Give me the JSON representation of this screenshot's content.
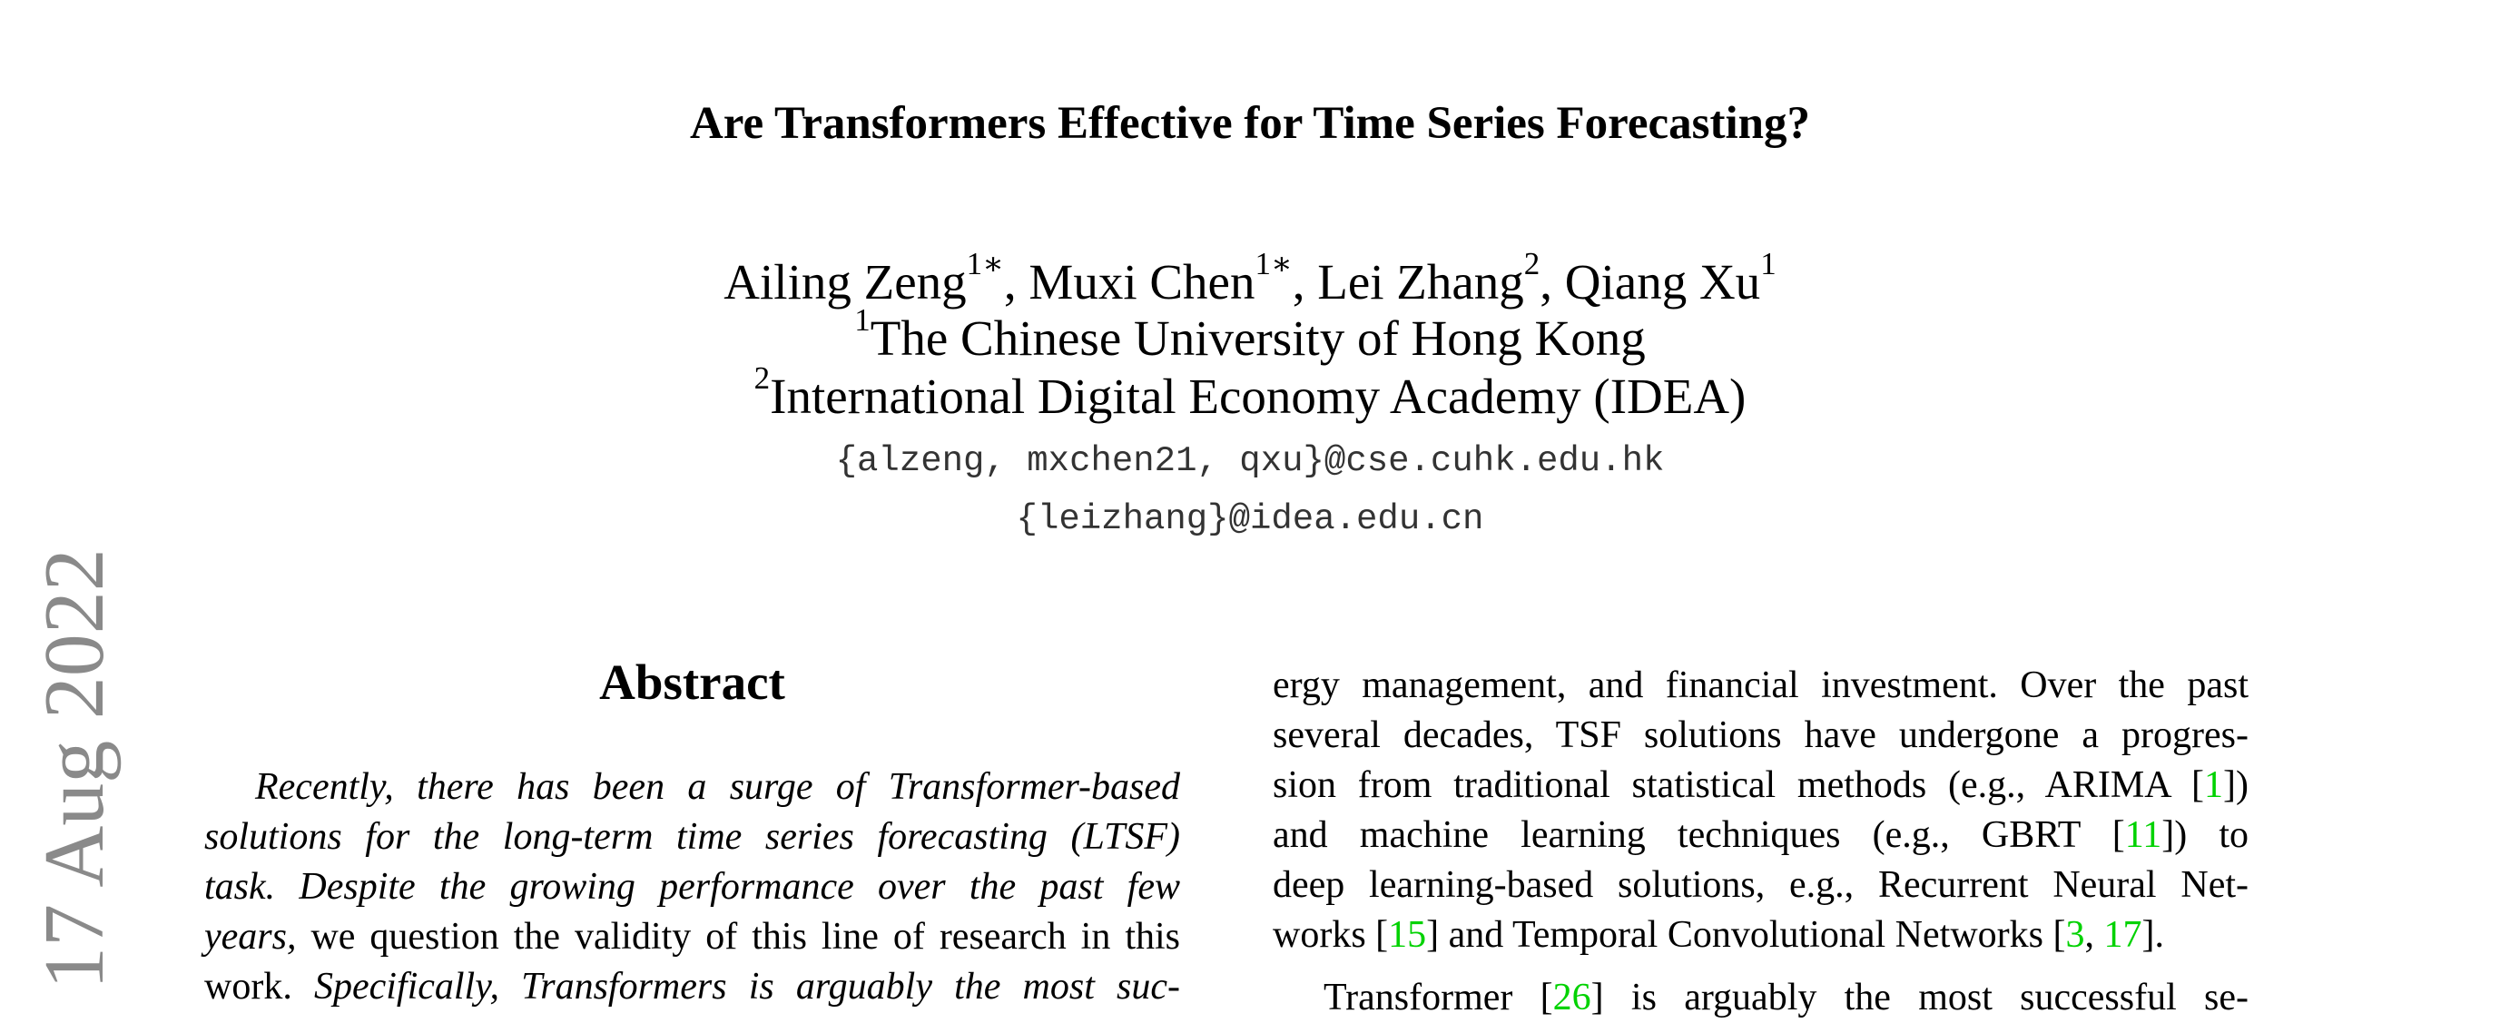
{
  "paper": {
    "title": "Are Transformers Effective for Time Series Forecasting?",
    "authors": [
      {
        "name": "Ailing Zeng",
        "mark": "1∗",
        "sep": ", "
      },
      {
        "name": "Muxi Chen",
        "mark": "1∗",
        "sep": ", "
      },
      {
        "name": "Lei Zhang",
        "mark": "2",
        "sep": ", "
      },
      {
        "name": "Qiang Xu",
        "mark": "1",
        "sep": ""
      }
    ],
    "affiliations": [
      {
        "mark": "1",
        "name": "The Chinese University of Hong Kong"
      },
      {
        "mark": "2",
        "name": "International Digital Economy Academy (IDEA)"
      }
    ],
    "emails": [
      "{alzeng, mxchen21, qxu}@cse.cuhk.edu.hk",
      "{leizhang}@idea.edu.cn"
    ],
    "arxiv_date": "17 Aug 2022",
    "abstract_heading": "Abstract",
    "abstract_lines": [
      {
        "a": "Recently, there has been a surge of Transformer-based",
        "a_style": "it"
      },
      {
        "a": "solutions for the long-term time series forecasting (LTSF)",
        "a_style": "it"
      },
      {
        "a": "task.  Despite the growing performance over the past few",
        "a_style": "it"
      },
      {
        "a": "years,",
        "a_style": "it",
        "b": " we question the validity of this line of research in this",
        "b_style": ""
      },
      {
        "a": "work. ",
        "a_style": "",
        "b": "Specifically, Transformers is arguably the most suc-",
        "b_style": "it"
      }
    ],
    "right_lines": [
      {
        "t": "ergy management, and financial investment. Over the past"
      },
      {
        "t": "several decades, TSF solutions have undergone a progres-"
      },
      {
        "t": "sion from traditional statistical methods (e.g., ARIMA [",
        "c": "1",
        "t2": "])"
      },
      {
        "t": "and machine learning techniques (e.g., GBRT [",
        "c": "11",
        "t2": "]) to"
      },
      {
        "t": "deep learning-based solutions, e.g., Recurrent Neural Net-"
      },
      {
        "t": "works [",
        "c": "15",
        "t2": "] and Temporal Convolutional Networks [",
        "c2": "3",
        "t3": ", ",
        "c3": "17",
        "t4": "]."
      }
    ],
    "right_para2": {
      "t": "Transformer [",
      "c": "26",
      "t2": "] is arguably the most successful se-"
    }
  },
  "colors": {
    "citation": "#00d200",
    "arxiv_stamp": "#8a8a8a"
  }
}
